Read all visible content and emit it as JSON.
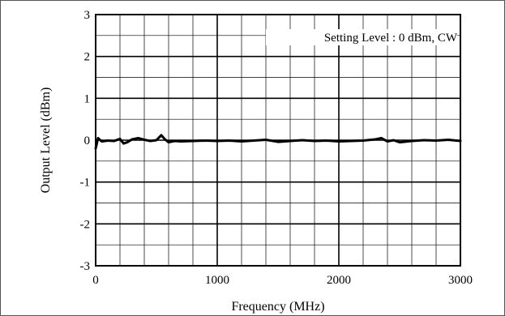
{
  "chart_data": {
    "type": "line",
    "title": "",
    "xlabel": "Frequency (MHz)",
    "ylabel": "Output Level (dBm)",
    "xlim": [
      0,
      3000
    ],
    "ylim": [
      -3,
      3
    ],
    "x_ticks": [
      "0",
      "1000",
      "2000",
      "3000"
    ],
    "y_ticks": [
      "3",
      "2",
      "1",
      "0",
      "-1",
      "-2",
      "-3"
    ],
    "grid": true,
    "annotation": "Setting Level : 0 dBm, CW",
    "line_color": "#000000",
    "series": [
      {
        "x": [
          0,
          20,
          50,
          100,
          150,
          200,
          230,
          260,
          300,
          350,
          400,
          450,
          500,
          540,
          570,
          600,
          650,
          700,
          800,
          900,
          1000,
          1100,
          1200,
          1300,
          1400,
          1500,
          1600,
          1700,
          1800,
          1900,
          2000,
          2100,
          2200,
          2300,
          2350,
          2400,
          2450,
          2500,
          2600,
          2700,
          2800,
          2900,
          3000
        ],
        "y": [
          -0.2,
          0.05,
          -0.03,
          -0.01,
          -0.02,
          0.03,
          -0.08,
          -0.05,
          0.02,
          0.05,
          0.01,
          -0.02,
          0.0,
          0.12,
          0.02,
          -0.05,
          -0.02,
          -0.03,
          -0.02,
          -0.01,
          -0.02,
          -0.01,
          -0.03,
          -0.01,
          0.01,
          -0.04,
          -0.02,
          0.0,
          -0.02,
          -0.01,
          -0.03,
          -0.02,
          -0.01,
          0.02,
          0.05,
          -0.03,
          0.0,
          -0.05,
          -0.02,
          0.0,
          -0.01,
          0.01,
          -0.02
        ]
      }
    ]
  }
}
